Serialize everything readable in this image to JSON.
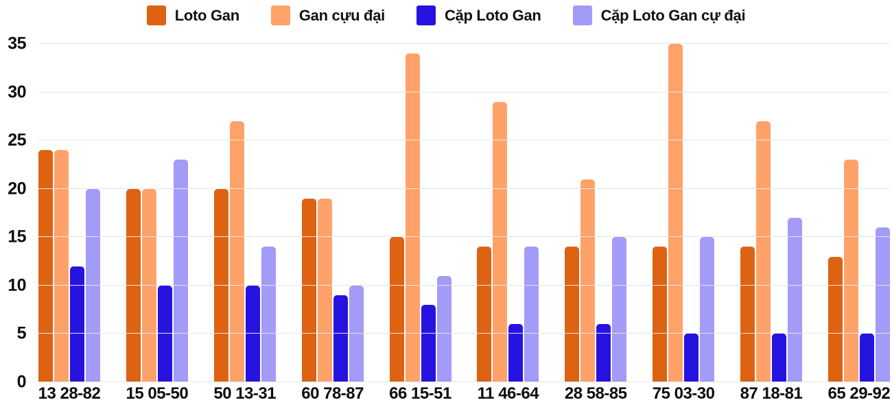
{
  "chart_data": {
    "type": "bar",
    "title": "",
    "xlabel": "",
    "ylabel": "",
    "ylim": [
      0,
      35
    ],
    "y_ticks": [
      0,
      5,
      10,
      15,
      20,
      25,
      30,
      35
    ],
    "grid": true,
    "legend_position": "top",
    "background_color": "#ffffff",
    "gridline_color": "#e6e6e6",
    "tick_label_color": "#0d0d0d",
    "categories": [
      "13 28-82",
      "15 05-50",
      "50 13-31",
      "60 78-87",
      "66 15-51",
      "11 46-64",
      "28 58-85",
      "75 03-30",
      "87 18-81",
      "65 29-92"
    ],
    "series": [
      {
        "name": "Loto Gan",
        "color": "#dd6211",
        "values": [
          24,
          20,
          20,
          19,
          15,
          14,
          14,
          14,
          14,
          13
        ]
      },
      {
        "name": "Gan cựu đại",
        "color": "#ffa269",
        "values": [
          24,
          20,
          27,
          19,
          34,
          29,
          21,
          35,
          27,
          23
        ]
      },
      {
        "name": "Cặp Loto Gan",
        "color": "#2713df",
        "values": [
          12,
          10,
          10,
          9,
          8,
          6,
          6,
          5,
          5,
          5
        ]
      },
      {
        "name": "Cặp Loto Gan cự đại",
        "color": "#a29bf7",
        "values": [
          20,
          23,
          14,
          10,
          11,
          14,
          15,
          15,
          17,
          16
        ]
      }
    ]
  }
}
